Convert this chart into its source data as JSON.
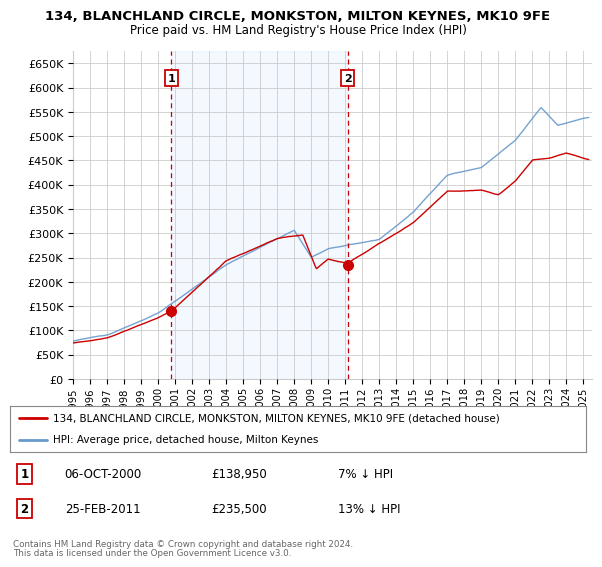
{
  "title": "134, BLANCHLAND CIRCLE, MONKSTON, MILTON KEYNES, MK10 9FE",
  "subtitle": "Price paid vs. HM Land Registry's House Price Index (HPI)",
  "ylim": [
    0,
    675000
  ],
  "yticks": [
    0,
    50000,
    100000,
    150000,
    200000,
    250000,
    300000,
    350000,
    400000,
    450000,
    500000,
    550000,
    600000,
    650000
  ],
  "xlim_start": 1995.0,
  "xlim_end": 2025.5,
  "purchase1_year": 2000.77,
  "purchase1_price": 138950,
  "purchase1_label": "1",
  "purchase1_date": "06-OCT-2000",
  "purchase1_pct": "7%",
  "purchase2_year": 2011.15,
  "purchase2_price": 235500,
  "purchase2_label": "2",
  "purchase2_date": "25-FEB-2011",
  "purchase2_pct": "13%",
  "line_color_red": "#cc0000",
  "line_color_blue": "#6699cc",
  "shade_color": "#ddeeff",
  "vline_color": "#cc0000",
  "grid_color": "#cccccc",
  "legend_label_red": "134, BLANCHLAND CIRCLE, MONKSTON, MILTON KEYNES, MK10 9FE (detached house)",
  "legend_label_blue": "HPI: Average price, detached house, Milton Keynes",
  "footer1": "Contains HM Land Registry data © Crown copyright and database right 2024.",
  "footer2": "This data is licensed under the Open Government Licence v3.0.",
  "background_color": "#ffffff",
  "plot_bg_color": "#ffffff"
}
